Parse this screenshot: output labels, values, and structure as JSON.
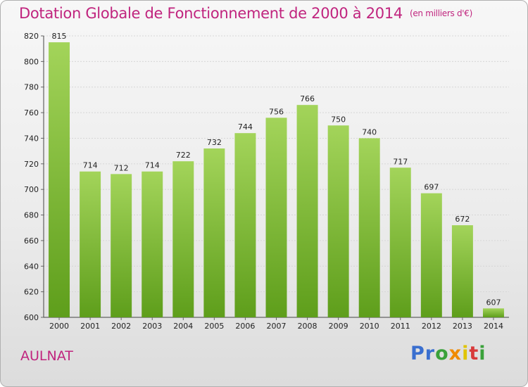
{
  "header": {
    "title": "Dotation Globale de Fonctionnement de 2000 à 2014",
    "unit": "(en milliers d'€)"
  },
  "footer": {
    "commune": "AULNAT",
    "logo": [
      "Pr",
      "o",
      "x",
      "i",
      "t",
      "i"
    ]
  },
  "colors": {
    "title": "#c0247e",
    "bar_top": "#a3d45a",
    "bar_bottom": "#5e9e1b"
  },
  "chart_data": {
    "type": "bar",
    "title": "Dotation Globale de Fonctionnement de 2000 à 2014",
    "subtitle": "(en milliers d'€)",
    "xlabel": "",
    "ylabel": "",
    "categories": [
      "2000",
      "2001",
      "2002",
      "2003",
      "2004",
      "2005",
      "2006",
      "2007",
      "2008",
      "2009",
      "2010",
      "2011",
      "2012",
      "2013",
      "2014"
    ],
    "values": [
      815,
      714,
      712,
      714,
      722,
      732,
      744,
      756,
      766,
      750,
      740,
      717,
      697,
      672,
      607
    ],
    "ylim": [
      600,
      820
    ],
    "yticks": [
      600,
      620,
      640,
      660,
      680,
      700,
      720,
      740,
      760,
      780,
      800,
      820
    ],
    "grid": true,
    "legend": "none"
  }
}
